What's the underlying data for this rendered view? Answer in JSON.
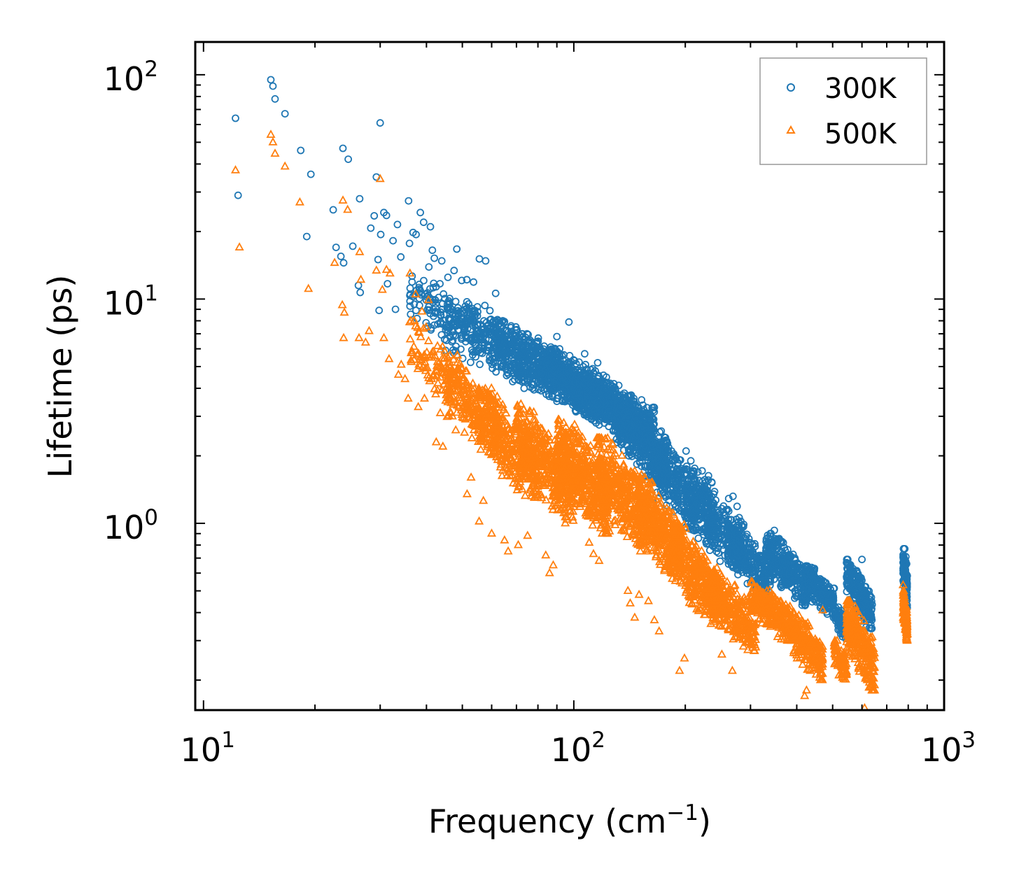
{
  "chart_data": {
    "type": "scatter",
    "title": "",
    "xlabel": "Frequency (cm",
    "xlabel_sup": "−1",
    "xlabel_end": ")",
    "ylabel": "Lifetime (ps)",
    "xscale": "log",
    "yscale": "log",
    "xlim": [
      9.5,
      1000
    ],
    "ylim": [
      0.147,
      140
    ],
    "x_ticks": [
      {
        "value": 10,
        "base": "10",
        "exp": "1"
      },
      {
        "value": 100,
        "base": "10",
        "exp": "2"
      },
      {
        "value": 1000,
        "base": "10",
        "exp": "3"
      }
    ],
    "y_ticks": [
      {
        "value": 1,
        "base": "10",
        "exp": "0"
      },
      {
        "value": 10,
        "base": "10",
        "exp": "1"
      },
      {
        "value": 100,
        "base": "10",
        "exp": "2"
      }
    ],
    "legend_position": "top-right",
    "series": [
      {
        "name": "300K",
        "color": "#1f77b4",
        "marker": "circle",
        "points": [
          [
            12.2,
            64
          ],
          [
            12.4,
            29
          ],
          [
            15.2,
            95
          ],
          [
            15.4,
            89
          ],
          [
            15.6,
            78
          ],
          [
            16.6,
            67
          ],
          [
            18.3,
            46
          ],
          [
            19.5,
            36
          ],
          [
            19.0,
            19
          ],
          [
            22.4,
            25
          ],
          [
            22.8,
            17
          ],
          [
            23.8,
            47
          ],
          [
            24.6,
            42
          ],
          [
            23.5,
            15.5
          ],
          [
            23.9,
            14.5
          ],
          [
            25.3,
            17.2
          ],
          [
            26.4,
            28
          ],
          [
            26.2,
            11.5
          ],
          [
            26.5,
            10.7
          ],
          [
            28.3,
            20.7
          ],
          [
            28.9,
            23.5
          ],
          [
            29.3,
            35
          ],
          [
            30.0,
            61
          ],
          [
            29.6,
            15
          ],
          [
            30.1,
            19.4
          ],
          [
            30.7,
            24.3
          ],
          [
            31.2,
            23.6
          ],
          [
            32.5,
            18.2
          ],
          [
            33.4,
            21.5
          ],
          [
            34.1,
            15.4
          ],
          [
            29.8,
            8.9
          ],
          [
            31.4,
            11.7
          ],
          [
            33.0,
            9.0
          ],
          [
            35.8,
            27.4
          ],
          [
            36.0,
            17.7
          ],
          [
            36.8,
            19.8
          ],
          [
            37.5,
            19.4
          ],
          [
            38.5,
            24.3
          ],
          [
            39.3,
            22.0
          ],
          [
            41.0,
            21.0
          ],
          [
            41.5,
            16.5
          ],
          [
            40.6,
            13.9
          ],
          [
            42.0,
            15.2
          ],
          [
            43.5,
            11.7
          ],
          [
            44.0,
            14.8
          ],
          [
            45.7,
            12.5
          ],
          [
            47.5,
            13.4
          ],
          [
            48.3,
            16.7
          ],
          [
            49.8,
            12.1
          ],
          [
            51.4,
            12.2
          ],
          [
            53.6,
            11.9
          ],
          [
            55.6,
            15.1
          ],
          [
            57.8,
            14.8
          ],
          [
            61.5,
            10.6
          ],
          [
            97.0,
            7.9
          ],
          [
            90.0,
            6.8
          ],
          [
            107,
            5.7
          ],
          [
            116,
            5.2
          ],
          [
            201,
            2.1
          ],
          [
            207,
            1.9
          ],
          [
            231,
            1.63
          ],
          [
            262,
            1.29
          ],
          [
            269,
            1.32
          ],
          [
            276,
            1.19
          ],
          [
            302,
            0.72
          ],
          [
            348,
            0.93
          ],
          [
            396,
            0.69
          ],
          [
            600,
            0.69
          ],
          [
            783,
            0.77
          ],
          [
            788,
            0.71
          ],
          [
            792,
            0.66
          ]
        ],
        "clusters": [
          {
            "x": [
              36,
              60
            ],
            "y": [
              5.5,
              13
            ],
            "n": 160
          },
          {
            "x": [
              45,
              80
            ],
            "y": [
              4.0,
              10
            ],
            "n": 260
          },
          {
            "x": [
              60,
              100
            ],
            "y": [
              3.5,
              8
            ],
            "n": 420
          },
          {
            "x": [
              80,
              130
            ],
            "y": [
              2.8,
              6
            ],
            "n": 480
          },
          {
            "x": [
              100,
              165
            ],
            "y": [
              2.2,
              4.8
            ],
            "n": 520
          },
          {
            "x": [
              130,
              180
            ],
            "y": [
              1.5,
              3.6
            ],
            "n": 380
          },
          {
            "x": [
              160,
              240
            ],
            "y": [
              0.9,
              2.3
            ],
            "n": 380
          },
          {
            "x": [
              200,
              290
            ],
            "y": [
              0.62,
              1.55
            ],
            "n": 320
          },
          {
            "x": [
              260,
              340
            ],
            "y": [
              0.46,
              1.0
            ],
            "n": 260
          },
          {
            "x": [
              330,
              430
            ],
            "y": [
              0.43,
              0.9
            ],
            "n": 300
          },
          {
            "x": [
              420,
              505
            ],
            "y": [
              0.38,
              0.66
            ],
            "n": 200
          },
          {
            "x": [
              505,
              545
            ],
            "y": [
              0.3,
              0.45
            ],
            "n": 70
          },
          {
            "x": [
              545,
              640
            ],
            "y": [
              0.34,
              0.69
            ],
            "n": 240
          },
          {
            "x": [
              775,
              795
            ],
            "y": [
              0.42,
              0.77
            ],
            "n": 130
          }
        ]
      },
      {
        "name": "500K",
        "color": "#ff7f0e",
        "marker": "triangle",
        "points": [
          [
            12.2,
            37.5
          ],
          [
            12.5,
            17
          ],
          [
            15.2,
            54
          ],
          [
            15.4,
            50
          ],
          [
            15.6,
            44.5
          ],
          [
            16.6,
            39
          ],
          [
            18.2,
            27
          ],
          [
            19.2,
            11.1
          ],
          [
            22.6,
            14.5
          ],
          [
            23.8,
            27.5
          ],
          [
            24.5,
            25
          ],
          [
            23.7,
            9.4
          ],
          [
            24.0,
            8.7
          ],
          [
            23.9,
            6.7
          ],
          [
            26.4,
            16.2
          ],
          [
            26.6,
            12.2
          ],
          [
            26.3,
            6.7
          ],
          [
            27.4,
            6.4
          ],
          [
            28.0,
            7.2
          ],
          [
            29.3,
            13.4
          ],
          [
            30.0,
            34.3
          ],
          [
            30.4,
            11.0
          ],
          [
            31.2,
            13.5
          ],
          [
            31.9,
            13.0
          ],
          [
            30.7,
            6.7
          ],
          [
            31.7,
            5.4
          ],
          [
            34.2,
            5.1
          ],
          [
            33.6,
            4.6
          ],
          [
            35.0,
            4.4
          ],
          [
            35.7,
            3.6
          ],
          [
            36.1,
            13.0
          ],
          [
            37.4,
            10.5
          ],
          [
            38.9,
            8.8
          ],
          [
            40.5,
            9.9
          ],
          [
            38.0,
            3.3
          ],
          [
            39.5,
            3.6
          ],
          [
            41.3,
            4.4
          ],
          [
            42.5,
            2.3
          ],
          [
            43.6,
            3.1
          ],
          [
            44.3,
            2.2
          ],
          [
            47.0,
            3.0
          ],
          [
            48.0,
            2.6
          ],
          [
            51.5,
            1.35
          ],
          [
            52.8,
            1.6
          ],
          [
            55.5,
            1.02
          ],
          [
            57.0,
            1.26
          ],
          [
            60.0,
            0.9
          ],
          [
            65.0,
            0.84
          ],
          [
            66.5,
            0.75
          ],
          [
            70.8,
            0.8
          ],
          [
            75.0,
            0.88
          ],
          [
            84.0,
            0.72
          ],
          [
            86.0,
            0.6
          ],
          [
            88.0,
            0.65
          ],
          [
            110,
            0.82
          ],
          [
            113,
            0.73
          ],
          [
            117,
            0.68
          ],
          [
            140,
            0.5
          ],
          [
            142,
            0.44
          ],
          [
            146,
            0.38
          ],
          [
            150,
            0.48
          ],
          [
            159,
            0.45
          ],
          [
            165,
            0.37
          ],
          [
            170,
            0.33
          ],
          [
            193,
            0.22
          ],
          [
            199,
            0.25
          ],
          [
            251,
            0.26
          ],
          [
            268,
            0.22
          ],
          [
            303,
            0.29
          ],
          [
            310,
            0.28
          ],
          [
            401,
            0.25
          ],
          [
            420,
            0.17
          ],
          [
            425,
            0.18
          ],
          [
            470,
            0.41
          ],
          [
            520,
            0.21
          ],
          [
            535,
            0.26
          ],
          [
            560,
            0.3
          ],
          [
            610,
            0.15
          ],
          [
            620,
            0.2
          ],
          [
            640,
            0.22
          ],
          [
            775,
            0.53
          ],
          [
            788,
            0.42
          ],
          [
            795,
            0.32
          ]
        ],
        "clusters": [
          {
            "x": [
              36,
              52
            ],
            "y": [
              3.0,
              8
            ],
            "n": 130
          },
          {
            "x": [
              45,
              65
            ],
            "y": [
              2.0,
              5.2
            ],
            "n": 200
          },
          {
            "x": [
              55,
              80
            ],
            "y": [
              1.3,
              4.0
            ],
            "n": 340
          },
          {
            "x": [
              70,
              100
            ],
            "y": [
              1.0,
              3.4
            ],
            "n": 420
          },
          {
            "x": [
              90,
              125
            ],
            "y": [
              0.9,
              2.9
            ],
            "n": 480
          },
          {
            "x": [
              115,
              160
            ],
            "y": [
              0.75,
              2.4
            ],
            "n": 480
          },
          {
            "x": [
              150,
              195
            ],
            "y": [
              0.55,
              1.6
            ],
            "n": 380
          },
          {
            "x": [
              185,
              250
            ],
            "y": [
              0.35,
              1.0
            ],
            "n": 380
          },
          {
            "x": [
              230,
              310
            ],
            "y": [
              0.27,
              0.62
            ],
            "n": 300
          },
          {
            "x": [
              300,
              390
            ],
            "y": [
              0.3,
              0.55
            ],
            "n": 280
          },
          {
            "x": [
              390,
              470
            ],
            "y": [
              0.2,
              0.4
            ],
            "n": 240
          },
          {
            "x": [
              505,
              545
            ],
            "y": [
              0.2,
              0.3
            ],
            "n": 80
          },
          {
            "x": [
              545,
              650
            ],
            "y": [
              0.18,
              0.45
            ],
            "n": 280
          },
          {
            "x": [
              775,
              795
            ],
            "y": [
              0.3,
              0.5
            ],
            "n": 120
          }
        ]
      }
    ]
  }
}
